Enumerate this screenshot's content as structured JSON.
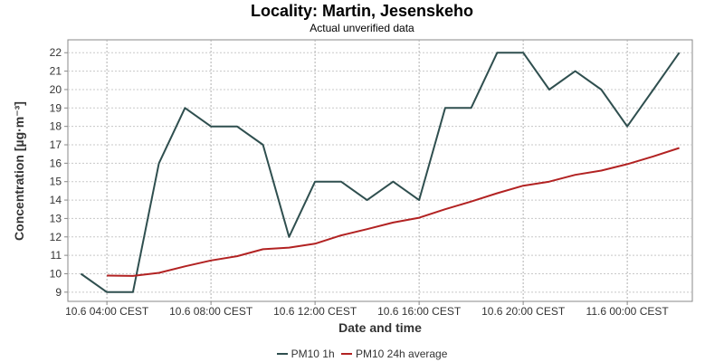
{
  "chart_data": {
    "type": "line",
    "title": "Locality: Martin, Jesenskeho",
    "subtitle": "Actual unverified data",
    "xlabel": "Date and time",
    "ylabel": "Concentration [µg·m⁻³]",
    "ylim": [
      8.5,
      22.7
    ],
    "yticks": [
      9,
      10,
      11,
      12,
      13,
      14,
      15,
      16,
      17,
      18,
      19,
      20,
      21,
      22
    ],
    "xticks": [
      "10.6 04:00 CEST",
      "10.6 08:00 CEST",
      "10.6 12:00 CEST",
      "10.6 16:00 CEST",
      "10.6 20:00 CEST",
      "11.6 00:00 CEST"
    ],
    "x_hours": [
      3,
      4,
      5,
      6,
      7,
      8,
      9,
      10,
      11,
      12,
      13,
      14,
      15,
      16,
      17,
      18,
      19,
      20,
      21,
      22,
      23,
      24,
      25,
      26
    ],
    "grid": true,
    "legend_position": "bottom",
    "series": [
      {
        "name": "PM10 1h",
        "color": "#2f4f4f",
        "values": [
          10,
          9,
          9,
          16,
          19,
          18,
          18,
          17,
          12,
          15,
          15,
          14,
          15,
          14,
          19,
          19,
          22,
          22,
          20,
          21,
          20,
          18,
          20,
          22
        ]
      },
      {
        "name": "PM10 24h average",
        "color": "#b22222",
        "values": [
          null,
          9.9,
          9.88,
          10.05,
          10.4,
          10.72,
          10.95,
          11.33,
          11.42,
          11.63,
          12.08,
          12.42,
          12.78,
          13.04,
          13.5,
          13.92,
          14.37,
          14.78,
          15.0,
          15.37,
          15.6,
          15.95,
          16.37,
          16.83
        ]
      }
    ]
  }
}
